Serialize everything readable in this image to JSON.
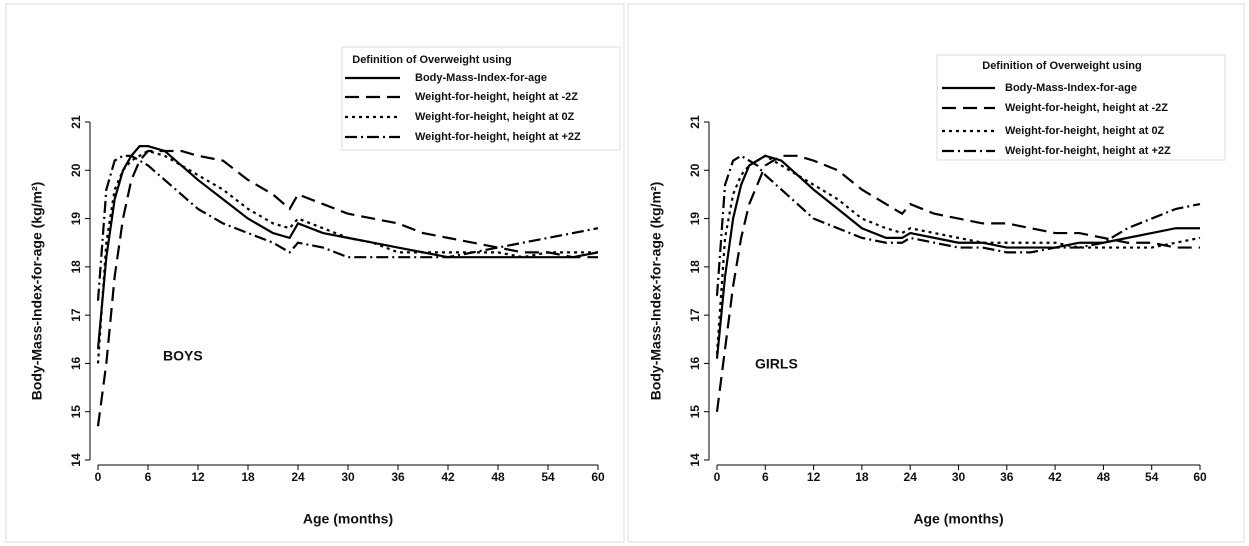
{
  "chart_data": [
    {
      "type": "line",
      "annotation": "BOYS",
      "xlabel": "Age (months)",
      "ylabel": "Body-Mass-Index-for-age (kg/m²)",
      "legend_title": "Definition of Overweight using",
      "legend": "upper right",
      "xlim": [
        0,
        60
      ],
      "xticks": [
        0,
        6,
        12,
        18,
        24,
        30,
        36,
        42,
        48,
        54,
        60
      ],
      "ylim": [
        14,
        21
      ],
      "yticks": [
        14,
        15,
        16,
        17,
        18,
        19,
        20,
        21
      ],
      "x": [
        0,
        1,
        2,
        3,
        4,
        5,
        6,
        8,
        10,
        12,
        15,
        18,
        21,
        23,
        24,
        27,
        30,
        33,
        36,
        39,
        42,
        45,
        48,
        51,
        54,
        57,
        60
      ],
      "series": [
        {
          "name": "Body-Mass-Index-for-age",
          "color": "#000000",
          "line_style": "solid",
          "values": [
            16.3,
            18.2,
            19.4,
            20.0,
            20.3,
            20.5,
            20.5,
            20.4,
            20.1,
            19.8,
            19.4,
            19.0,
            18.7,
            18.6,
            18.9,
            18.7,
            18.6,
            18.5,
            18.4,
            18.3,
            18.2,
            18.2,
            18.2,
            18.2,
            18.2,
            18.2,
            18.3
          ]
        },
        {
          "name": "Weight-for-height, height at -2Z",
          "color": "#000000",
          "line_style": "dashed",
          "values": [
            14.7,
            16.0,
            17.8,
            19.0,
            19.8,
            20.2,
            20.4,
            20.4,
            20.4,
            20.3,
            20.2,
            19.8,
            19.5,
            19.2,
            19.5,
            19.3,
            19.1,
            19.0,
            18.9,
            18.7,
            18.6,
            18.5,
            18.4,
            18.3,
            18.3,
            18.2,
            18.2
          ]
        },
        {
          "name": "Weight-for-height, height at 0Z",
          "color": "#000000",
          "line_style": "dotted",
          "values": [
            16.0,
            18.5,
            19.6,
            20.0,
            20.2,
            20.3,
            20.4,
            20.3,
            20.1,
            19.9,
            19.6,
            19.2,
            18.9,
            18.8,
            19.0,
            18.8,
            18.6,
            18.5,
            18.3,
            18.3,
            18.3,
            18.3,
            18.3,
            18.2,
            18.3,
            18.3,
            18.3
          ]
        },
        {
          "name": "Weight-for-height, height at +2Z",
          "color": "#000000",
          "line_style": "dashdot",
          "values": [
            17.3,
            19.6,
            20.2,
            20.3,
            20.3,
            20.2,
            20.1,
            19.8,
            19.5,
            19.2,
            18.9,
            18.7,
            18.5,
            18.3,
            18.5,
            18.4,
            18.2,
            18.2,
            18.2,
            18.2,
            18.2,
            18.3,
            18.4,
            18.5,
            18.6,
            18.7,
            18.8
          ]
        }
      ]
    },
    {
      "type": "line",
      "annotation": "GIRLS",
      "xlabel": "Age (months)",
      "ylabel": "Body-Mass-Index-for-age (kg/m²)",
      "legend_title": "Definition of Overweight using",
      "legend": "upper right",
      "xlim": [
        0,
        60
      ],
      "xticks": [
        0,
        6,
        12,
        18,
        24,
        30,
        36,
        42,
        48,
        54,
        60
      ],
      "ylim": [
        14,
        21
      ],
      "yticks": [
        14,
        15,
        16,
        17,
        18,
        19,
        20,
        21
      ],
      "x": [
        0,
        1,
        2,
        3,
        4,
        5,
        6,
        8,
        10,
        12,
        15,
        18,
        21,
        23,
        24,
        27,
        30,
        33,
        36,
        39,
        42,
        45,
        48,
        51,
        54,
        57,
        60
      ],
      "series": [
        {
          "name": "Body-Mass-Index-for-age",
          "color": "#000000",
          "line_style": "solid",
          "values": [
            16.1,
            17.8,
            19.0,
            19.7,
            20.1,
            20.2,
            20.3,
            20.2,
            19.9,
            19.6,
            19.2,
            18.8,
            18.6,
            18.6,
            18.7,
            18.6,
            18.5,
            18.5,
            18.4,
            18.4,
            18.4,
            18.5,
            18.5,
            18.6,
            18.7,
            18.8,
            18.8
          ]
        },
        {
          "name": "Weight-for-height, height at -2Z",
          "color": "#000000",
          "line_style": "dashed",
          "values": [
            15.0,
            16.3,
            17.6,
            18.6,
            19.3,
            19.7,
            20.1,
            20.3,
            20.3,
            20.2,
            20.0,
            19.6,
            19.3,
            19.1,
            19.3,
            19.1,
            19.0,
            18.9,
            18.9,
            18.8,
            18.7,
            18.7,
            18.6,
            18.5,
            18.5,
            18.4,
            18.4
          ]
        },
        {
          "name": "Weight-for-height, height at 0Z",
          "color": "#000000",
          "line_style": "dotted",
          "values": [
            16.2,
            18.6,
            19.5,
            19.9,
            20.1,
            20.2,
            20.3,
            20.1,
            19.9,
            19.7,
            19.4,
            19.0,
            18.8,
            18.7,
            18.8,
            18.7,
            18.6,
            18.5,
            18.5,
            18.5,
            18.5,
            18.4,
            18.4,
            18.4,
            18.4,
            18.5,
            18.6
          ]
        },
        {
          "name": "Weight-for-height, height at +2Z",
          "color": "#000000",
          "line_style": "dashdot",
          "values": [
            17.4,
            19.7,
            20.2,
            20.3,
            20.2,
            20.1,
            19.9,
            19.6,
            19.3,
            19.0,
            18.8,
            18.6,
            18.5,
            18.5,
            18.6,
            18.5,
            18.4,
            18.4,
            18.3,
            18.3,
            18.4,
            18.4,
            18.5,
            18.8,
            19.0,
            19.2,
            19.3
          ]
        }
      ]
    }
  ]
}
